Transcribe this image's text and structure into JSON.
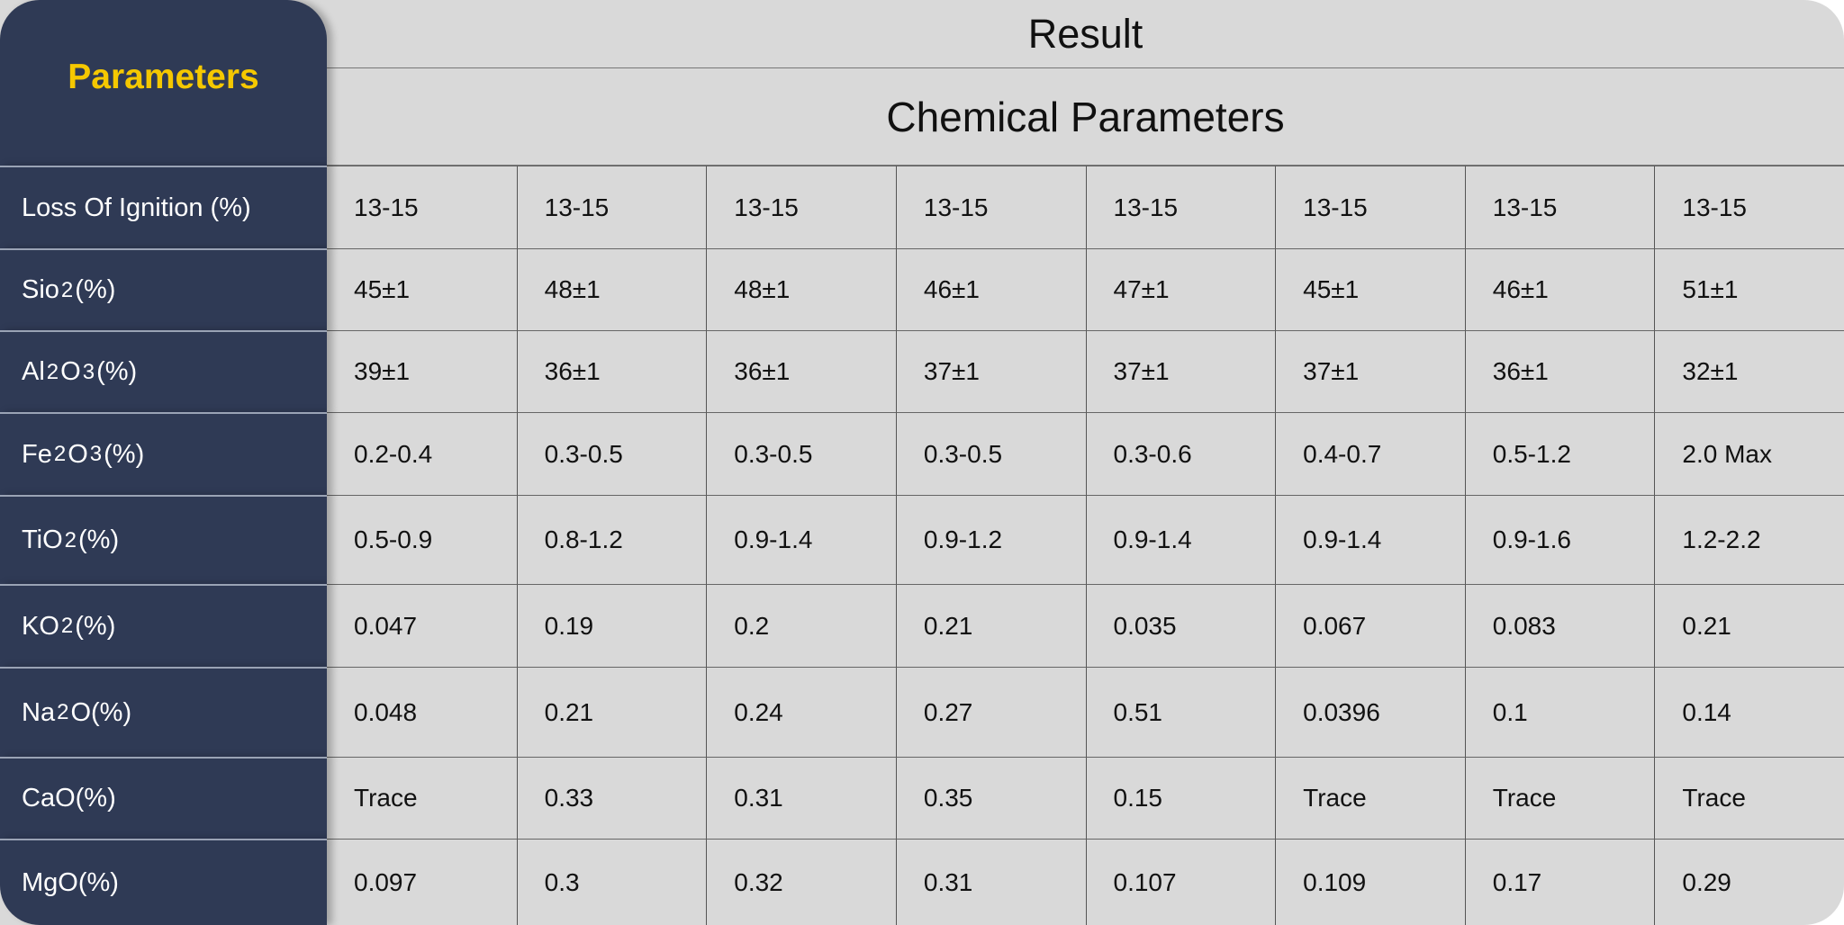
{
  "sidebar": {
    "title": "Parameters"
  },
  "header": {
    "result": "Result",
    "subtitle": "Chemical Parameters"
  },
  "colors": {
    "sidebar_bg": "#2f3a55",
    "title_accent": "#f5c800",
    "table_bg": "#d9d9d9"
  },
  "rows": [
    {
      "label": [
        "Loss Of Ignition (%)"
      ],
      "values": [
        "13-15",
        "13-15",
        "13-15",
        "13-15",
        "13-15",
        "13-15",
        "13-15",
        "13-15"
      ]
    },
    {
      "label": [
        "Sio",
        "2",
        "(%)"
      ],
      "values": [
        "45±1",
        "48±1",
        "48±1",
        "46±1",
        "47±1",
        "45±1",
        "46±1",
        "51±1"
      ]
    },
    {
      "label": [
        "Al",
        "2",
        "O",
        "3",
        " (%)"
      ],
      "values": [
        "39±1",
        "36±1",
        "36±1",
        "37±1",
        "37±1",
        "37±1",
        "36±1",
        "32±1"
      ]
    },
    {
      "label": [
        "Fe",
        "2",
        "O",
        "3",
        "(%)"
      ],
      "values": [
        "0.2-0.4",
        "0.3-0.5",
        "0.3-0.5",
        "0.3-0.5",
        "0.3-0.6",
        "0.4-0.7",
        "0.5-1.2",
        "2.0 Max"
      ]
    },
    {
      "label": [
        "TiO",
        "2",
        " (%)"
      ],
      "values": [
        "0.5-0.9",
        "0.8-1.2",
        "0.9-1.4",
        "0.9-1.2",
        "0.9-1.4",
        "0.9-1.4",
        "0.9-1.6",
        "1.2-2.2"
      ]
    },
    {
      "label": [
        "KO",
        "2",
        "(%)"
      ],
      "values": [
        "0.047",
        "0.19",
        "0.2",
        "0.21",
        "0.035",
        "0.067",
        "0.083",
        "0.21"
      ]
    },
    {
      "label": [
        "Na",
        "2",
        "O(%)"
      ],
      "values": [
        "0.048",
        "0.21",
        "0.24",
        "0.27",
        "0.51",
        "0.0396",
        "0.1",
        "0.14"
      ]
    },
    {
      "label": [
        "CaO(%)"
      ],
      "values": [
        "Trace",
        "0.33",
        "0.31",
        "0.35",
        "0.15",
        "Trace",
        "Trace",
        "Trace"
      ]
    },
    {
      "label": [
        "MgO(%)"
      ],
      "values": [
        "0.097",
        "0.3",
        "0.32",
        "0.31",
        "0.107",
        "0.109",
        "0.17",
        "0.29"
      ]
    }
  ]
}
